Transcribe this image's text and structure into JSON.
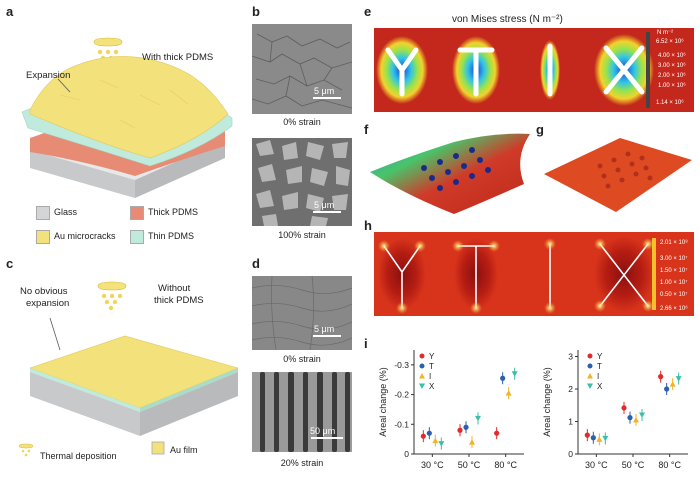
{
  "panels": {
    "a": "a",
    "b": "b",
    "c": "c",
    "d": "d",
    "e": "e",
    "f": "f",
    "g": "g",
    "h": "h",
    "i": "i"
  },
  "panel_a": {
    "with_thick": "With thick PDMS",
    "expansion": "Expansion"
  },
  "legend": {
    "glass": "Glass",
    "thick_pdms": "Thick PDMS",
    "au_microcracks": "Au microcracks",
    "thin_pdms": "Thin PDMS",
    "colors": {
      "glass": "#d3d5d6",
      "thick_pdms": "#e88b74",
      "au_microcracks": "#f3e17c",
      "thin_pdms": "#bfeadc"
    }
  },
  "panel_c": {
    "without_line1": "Without",
    "without_line2": "thick PDMS",
    "no_obvious_line1": "No obvious",
    "no_obvious_line2": "expansion",
    "thermal_deposition": "Thermal deposition",
    "au_film": "Au film"
  },
  "panel_b": {
    "scale1": "5 μm",
    "cap1": "0% strain",
    "scale2": "5 μm",
    "cap2": "100% strain"
  },
  "panel_d": {
    "scale1": "5 μm",
    "cap1": "0% strain",
    "scale2": "50 μm",
    "cap2": "20% strain"
  },
  "panel_e": {
    "title": "von Mises stress (N m⁻²)",
    "unit": "N m⁻²",
    "ticks": [
      "6.52 × 10⁶",
      "4.00 × 10⁶",
      "3.00 × 10⁶",
      "2.00 × 10⁶",
      "1.00 × 10⁶",
      "1.14 × 10⁶"
    ]
  },
  "panel_h": {
    "ticks": [
      "2.01 × 10⁸",
      "3.00 × 10⁷",
      "1.50 × 10⁷",
      "1.00 × 10⁷",
      "0.50 × 10⁷",
      "2.66 × 10⁶"
    ]
  },
  "chart_data": [
    {
      "type": "scatter",
      "ylabel": "Areal change (%)",
      "categories": [
        "30 °C",
        "50 °C",
        "80 °C"
      ],
      "ylim": [
        0,
        -0.35
      ],
      "yticks": [
        "0",
        "-0.1",
        "-0.2",
        "-0.3"
      ],
      "series": [
        {
          "name": "Y",
          "color": "#e02b2b",
          "marker": "circle",
          "values": [
            -0.06,
            -0.08,
            -0.07
          ]
        },
        {
          "name": "T",
          "color": "#2c5fae",
          "marker": "circle",
          "values": [
            -0.07,
            -0.09,
            -0.255
          ]
        },
        {
          "name": "I",
          "color": "#f0b428",
          "marker": "triangle-up",
          "values": [
            -0.045,
            -0.04,
            -0.205
          ]
        },
        {
          "name": "X",
          "color": "#38c0a8",
          "marker": "triangle-down",
          "values": [
            -0.035,
            -0.12,
            -0.27
          ]
        }
      ]
    },
    {
      "type": "scatter",
      "ylabel": "Areal change (%)",
      "categories": [
        "30 °C",
        "50 °C",
        "80 °C"
      ],
      "ylim": [
        0,
        3.2
      ],
      "yticks": [
        "0",
        "1",
        "2",
        "3"
      ],
      "series": [
        {
          "name": "Y",
          "color": "#e02b2b",
          "marker": "circle",
          "values": [
            0.58,
            1.42,
            2.38
          ]
        },
        {
          "name": "T",
          "color": "#2c5fae",
          "marker": "circle",
          "values": [
            0.5,
            1.12,
            2.0
          ]
        },
        {
          "name": "I",
          "color": "#f0b428",
          "marker": "triangle-up",
          "values": [
            0.45,
            1.05,
            2.15
          ]
        },
        {
          "name": "X",
          "color": "#38c0a8",
          "marker": "triangle-down",
          "values": [
            0.48,
            1.2,
            2.32
          ]
        }
      ]
    }
  ]
}
